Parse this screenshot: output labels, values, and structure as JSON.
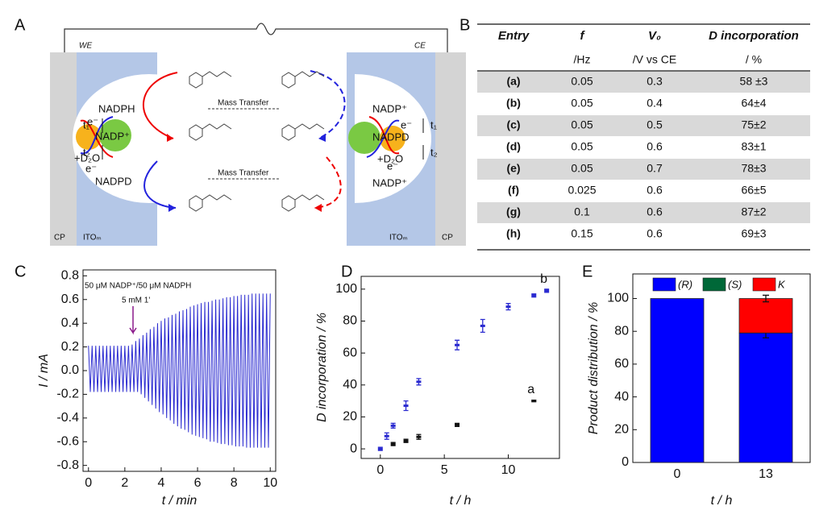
{
  "panels": [
    "A",
    "B",
    "C",
    "D",
    "E"
  ],
  "diagram": {
    "labels": [
      "WE",
      "CE",
      "CP",
      "ITOₘ",
      "ITOₘ",
      "CP",
      "NADPH",
      "NADP⁺",
      "+D₂O",
      "NADPD",
      "e⁻",
      "e⁻",
      "t₁",
      "t₂",
      "NADP⁺",
      "NADPD",
      "+D₂O",
      "NADP⁺",
      "e⁻",
      "e⁻",
      "t₁",
      "t₂",
      "Mass Transfer",
      "Mass Transfer"
    ]
  },
  "table": {
    "header": [
      "Entry",
      "f",
      "V₀",
      "D incorporation"
    ],
    "units": [
      "/Hz",
      "/V vs CE",
      "/ %"
    ],
    "rows": [
      [
        "(a)",
        "0.05",
        "0.3",
        "58 ±3"
      ],
      [
        "(b)",
        "0.05",
        "0.4",
        "64±4"
      ],
      [
        "(c)",
        "0.05",
        "0.5",
        "75±2"
      ],
      [
        "(d)",
        "0.05",
        "0.6",
        "83±1"
      ],
      [
        "(e)",
        "0.05",
        "0.7",
        "78±3"
      ],
      [
        "(f)",
        "0.025",
        "0.6",
        "66±5"
      ],
      [
        "(g)",
        "0.1",
        "0.6",
        "87±2"
      ],
      [
        "(h)",
        "0.15",
        "0.6",
        "69±3"
      ]
    ]
  },
  "chart_data": [
    {
      "type": "line",
      "xlabel": "t / min",
      "ylabel": "I / mA",
      "color": "#2a2ad0",
      "annotations": [
        "50 μM NADP⁺/50 μM NADPH",
        "5 mM 1'"
      ],
      "xlim": [
        -0.3,
        10.3
      ],
      "ylim": [
        -0.85,
        0.85
      ],
      "xticks": [
        0,
        2,
        4,
        6,
        8,
        10
      ],
      "yticks": [
        -0.8,
        -0.6,
        -0.4,
        -0.2,
        {
          "value": 0,
          "label": "0.0"
        },
        0.2,
        0.4,
        0.6,
        0.8
      ],
      "x": [
        0,
        0.1,
        0.2,
        0.3,
        0.4,
        0.5,
        0.6,
        0.7,
        0.8,
        0.9,
        1,
        1.1,
        1.2,
        1.3,
        1.4,
        1.5,
        1.6,
        1.7,
        1.8,
        1.9,
        2,
        2.1,
        2.2,
        2.3,
        2.4,
        2.5,
        2.6,
        2.7,
        2.8,
        2.9,
        3,
        3.1,
        3.2,
        3.3,
        3.4,
        3.5,
        3.6,
        3.7,
        3.8,
        3.9,
        4,
        4.1,
        4.2,
        4.3,
        4.4,
        4.5,
        4.6,
        4.7,
        4.8,
        4.9,
        5,
        5.1,
        5.2,
        5.3,
        5.4,
        5.5,
        5.6,
        5.7,
        5.8,
        5.9,
        6,
        6.1,
        6.2,
        6.3,
        6.4,
        6.5,
        6.6,
        6.7,
        6.8,
        6.9,
        7,
        7.1,
        7.2,
        7.3,
        7.4,
        7.5,
        7.6,
        7.7,
        7.8,
        7.9,
        8,
        8.1,
        8.2,
        8.3,
        8.4,
        8.5,
        8.6,
        8.7,
        8.8,
        8.9,
        9,
        9.1,
        9.2,
        9.3,
        9.4,
        9.5,
        9.6,
        9.7,
        9.8,
        9.9,
        10
      ],
      "values": [
        0.21,
        -0.18,
        0.21,
        -0.18,
        0.21,
        -0.18,
        0.21,
        -0.18,
        0.21,
        -0.18,
        0.21,
        -0.18,
        0.21,
        -0.18,
        0.21,
        -0.18,
        0.21,
        -0.18,
        0.21,
        -0.18,
        0.21,
        -0.18,
        0.21,
        -0.18,
        0.22,
        -0.18,
        0.25,
        -0.18,
        0.27,
        -0.2,
        0.3,
        -0.23,
        0.32,
        -0.26,
        0.35,
        -0.29,
        0.37,
        -0.32,
        0.4,
        -0.35,
        0.42,
        -0.37,
        0.44,
        -0.4,
        0.45,
        -0.42,
        0.47,
        -0.45,
        0.48,
        -0.47,
        0.5,
        -0.49,
        0.51,
        -0.5,
        0.52,
        -0.52,
        0.54,
        -0.54,
        0.55,
        -0.55,
        0.56,
        -0.56,
        0.57,
        -0.57,
        0.58,
        -0.58,
        0.58,
        -0.6,
        0.59,
        -0.6,
        0.6,
        -0.61,
        0.6,
        -0.62,
        0.61,
        -0.62,
        0.62,
        -0.63,
        0.62,
        -0.63,
        0.63,
        -0.64,
        0.63,
        -0.64,
        0.64,
        -0.64,
        0.64,
        -0.65,
        0.64,
        -0.65,
        0.65,
        -0.65,
        0.65,
        -0.65,
        0.65,
        -0.65,
        0.65,
        -0.65,
        0.65,
        -0.65,
        0.65
      ]
    },
    {
      "type": "scatter",
      "xlabel": "t / h",
      "ylabel": "D incorporation / %",
      "xlim": [
        -1.5,
        14
      ],
      "ylim": [
        -6,
        108
      ],
      "xticks": [
        0,
        5,
        10
      ],
      "yticks": [
        0,
        20,
        40,
        60,
        80,
        100
      ],
      "series": [
        {
          "name": "b",
          "color": "#2a2ad0",
          "x": [
            0,
            0.5,
            1,
            2,
            3,
            6,
            8,
            10,
            12,
            13
          ],
          "values": [
            0,
            8,
            14.5,
            27,
            42,
            65,
            77,
            89,
            96,
            99
          ],
          "errors": [
            1,
            2,
            1.5,
            3,
            2,
            3,
            4,
            2,
            1,
            1
          ]
        },
        {
          "name": "a",
          "color": "#111111",
          "x": [
            1,
            2,
            3,
            6,
            12
          ],
          "values": [
            3,
            5,
            7.5,
            15,
            30
          ],
          "errors": [
            1,
            1,
            1.5,
            1,
            0.5
          ]
        }
      ]
    },
    {
      "type": "stacked-bar",
      "xlabel": "t / h",
      "ylabel": "Product distribution / %",
      "categories": [
        "0",
        "13"
      ],
      "ylim": [
        0,
        115
      ],
      "yticks": [
        0,
        20,
        40,
        60,
        80,
        100
      ],
      "series": [
        {
          "name": "(R)",
          "color": "#0000ff",
          "values": [
            100,
            79
          ],
          "errors": [
            null,
            3
          ]
        },
        {
          "name": "(S)",
          "color": "#006838",
          "values": [
            0,
            0
          ]
        },
        {
          "name": "K",
          "color": "#ff0000",
          "values": [
            0,
            21
          ],
          "errors": [
            null,
            2
          ]
        }
      ]
    }
  ]
}
